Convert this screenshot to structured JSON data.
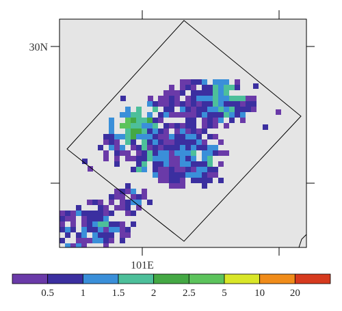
{
  "map": {
    "lat_label": "30N",
    "lon_label": "101E",
    "background_color": "#e5e5e5",
    "frame_color": "#000000"
  },
  "legend": {
    "colors": [
      "#6a3aa8",
      "#3b2fa0",
      "#3a8fd9",
      "#4dbf9a",
      "#44a844",
      "#5cc35c",
      "#d9e628",
      "#f08c1a",
      "#d63a1e"
    ],
    "ticks": [
      "0.5",
      "1",
      "1.5",
      "2",
      "2.5",
      "5",
      "10",
      "20"
    ]
  }
}
